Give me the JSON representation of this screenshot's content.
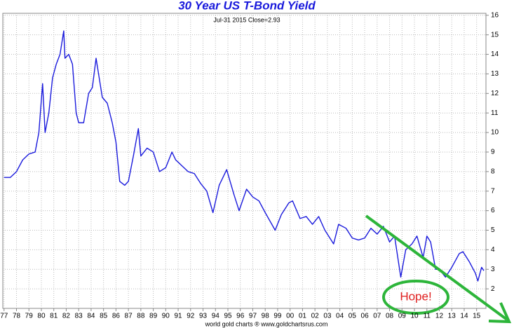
{
  "chart_data": {
    "type": "line",
    "title": "30 Year US T-Bond Yield",
    "subtitle": "Jul-31  2015   Close=2.93",
    "footer": "world gold charts ® www.goldchartsrus.com",
    "annotation": "Hope!",
    "color": "#1a1adc",
    "grid": true,
    "x": [
      1977.0,
      1977.5,
      1978.0,
      1978.5,
      1979.0,
      1979.5,
      1979.8,
      1980.1,
      1980.3,
      1980.6,
      1980.9,
      1981.2,
      1981.5,
      1981.8,
      1981.9,
      1982.2,
      1982.5,
      1982.8,
      1983.0,
      1983.4,
      1983.8,
      1984.1,
      1984.4,
      1984.6,
      1984.9,
      1985.3,
      1985.7,
      1986.0,
      1986.3,
      1986.7,
      1987.0,
      1987.4,
      1987.8,
      1988.0,
      1988.5,
      1989.0,
      1989.5,
      1990.0,
      1990.5,
      1990.8,
      1991.3,
      1991.8,
      1992.3,
      1992.8,
      1993.3,
      1993.8,
      1994.3,
      1994.9,
      1995.5,
      1995.9,
      1996.5,
      1997.0,
      1997.5,
      1998.0,
      1998.8,
      1999.3,
      1999.9,
      2000.2,
      2000.8,
      2001.3,
      2001.8,
      2002.3,
      2002.8,
      2003.5,
      2003.9,
      2004.5,
      2005.0,
      2005.5,
      2006.0,
      2006.5,
      2007.0,
      2007.5,
      2008.0,
      2008.4,
      2008.9,
      2009.3,
      2009.8,
      2010.2,
      2010.7,
      2011.0,
      2011.3,
      2011.7,
      2012.0,
      2012.5,
      2013.0,
      2013.6,
      2013.9,
      2014.4,
      2014.9,
      2015.1,
      2015.4,
      2015.58
    ],
    "values": [
      7.7,
      7.7,
      8.0,
      8.6,
      8.9,
      9.0,
      10.0,
      12.5,
      10.0,
      11.0,
      12.8,
      13.5,
      14.0,
      15.2,
      13.8,
      14.0,
      13.5,
      11.0,
      10.5,
      10.5,
      12.0,
      12.3,
      13.8,
      13.0,
      11.8,
      11.5,
      10.5,
      9.5,
      7.5,
      7.3,
      7.5,
      8.8,
      10.2,
      8.8,
      9.2,
      9.0,
      8.0,
      8.2,
      9.0,
      8.6,
      8.3,
      8.0,
      7.9,
      7.4,
      7.0,
      5.9,
      7.3,
      8.1,
      6.8,
      6.0,
      7.1,
      6.7,
      6.5,
      5.9,
      5.0,
      5.8,
      6.4,
      6.5,
      5.6,
      5.7,
      5.3,
      5.7,
      5.0,
      4.3,
      5.3,
      5.1,
      4.6,
      4.5,
      4.6,
      5.1,
      4.8,
      5.2,
      4.4,
      4.7,
      2.6,
      4.0,
      4.3,
      4.7,
      3.6,
      4.7,
      4.4,
      3.0,
      3.0,
      2.6,
      3.1,
      3.8,
      3.9,
      3.4,
      2.8,
      2.4,
      3.1,
      2.93
    ],
    "xlim": [
      1976.9,
      2015.75
    ],
    "ylim": [
      1,
      16.1
    ],
    "yticks": [
      2,
      3,
      4,
      5,
      6,
      7,
      8,
      9,
      10,
      11,
      12,
      13,
      14,
      15,
      16
    ],
    "xticks": [
      {
        "value": 1977,
        "label": "77"
      },
      {
        "value": 1978,
        "label": "78"
      },
      {
        "value": 1979,
        "label": "79"
      },
      {
        "value": 1980,
        "label": "80"
      },
      {
        "value": 1981,
        "label": "81"
      },
      {
        "value": 1982,
        "label": "82"
      },
      {
        "value": 1983,
        "label": "83"
      },
      {
        "value": 1984,
        "label": "84"
      },
      {
        "value": 1985,
        "label": "85"
      },
      {
        "value": 1986,
        "label": "86"
      },
      {
        "value": 1987,
        "label": "87"
      },
      {
        "value": 1988,
        "label": "88"
      },
      {
        "value": 1989,
        "label": "89"
      },
      {
        "value": 1990,
        "label": "90"
      },
      {
        "value": 1991,
        "label": "91"
      },
      {
        "value": 1992,
        "label": "92"
      },
      {
        "value": 1993,
        "label": "93"
      },
      {
        "value": 1994,
        "label": "94"
      },
      {
        "value": 1995,
        "label": "95"
      },
      {
        "value": 1996,
        "label": "96"
      },
      {
        "value": 1997,
        "label": "97"
      },
      {
        "value": 1998,
        "label": "98"
      },
      {
        "value": 1999,
        "label": "99"
      },
      {
        "value": 2000,
        "label": "00"
      },
      {
        "value": 2001,
        "label": "01"
      },
      {
        "value": 2002,
        "label": "02"
      },
      {
        "value": 2003,
        "label": "03"
      },
      {
        "value": 2004,
        "label": "04"
      },
      {
        "value": 2005,
        "label": "05"
      },
      {
        "value": 2006,
        "label": "06"
      },
      {
        "value": 2007,
        "label": "07"
      },
      {
        "value": 2008,
        "label": "08"
      },
      {
        "value": 2009,
        "label": "09"
      },
      {
        "value": 2010,
        "label": "10"
      },
      {
        "value": 2011,
        "label": "11"
      },
      {
        "value": 2012,
        "label": "12"
      },
      {
        "value": 2013,
        "label": "13"
      },
      {
        "value": 2014,
        "label": "14"
      },
      {
        "value": 2015,
        "label": "15"
      }
    ]
  }
}
